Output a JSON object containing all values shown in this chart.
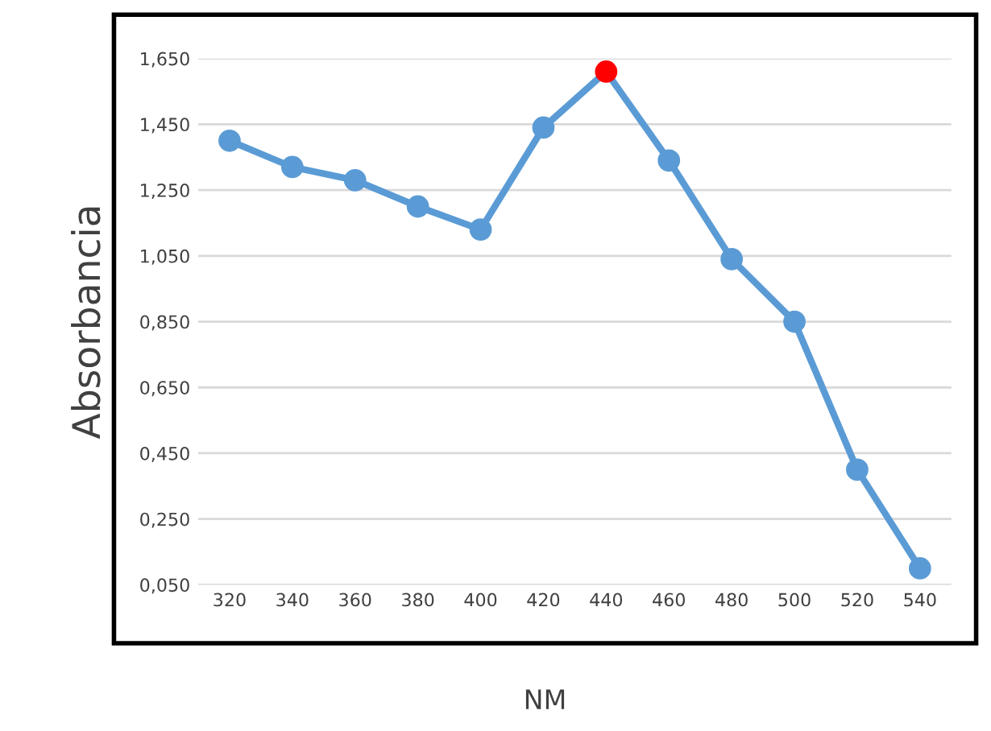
{
  "chart_data": {
    "type": "line",
    "xlabel": "NM",
    "ylabel": "Absorbancia",
    "categories": [
      "320",
      "340",
      "360",
      "380",
      "400",
      "420",
      "440",
      "460",
      "480",
      "500",
      "520",
      "540"
    ],
    "series": [
      {
        "color": "#5b9bd5",
        "colors": [
          "#5b9bd5",
          "#5b9bd5",
          "#5b9bd5",
          "#5b9bd5",
          "#5b9bd5",
          "#5b9bd5",
          "#ff0000",
          "#5b9bd5",
          "#5b9bd5",
          "#5b9bd5",
          "#5b9bd5",
          "#5b9bd5"
        ],
        "values": [
          1.4,
          1.32,
          1.28,
          1.2,
          1.13,
          1.44,
          1.61,
          1.34,
          1.04,
          0.85,
          0.4,
          0.1
        ]
      }
    ],
    "ylim": [
      0.05,
      1.65
    ],
    "yticks": [
      {
        "value": 0.05,
        "label": "0,050"
      },
      {
        "value": 0.25,
        "label": "0,250"
      },
      {
        "value": 0.45,
        "label": "0,450"
      },
      {
        "value": 0.65,
        "label": "0,650"
      },
      {
        "value": 0.85,
        "label": "0,850"
      },
      {
        "value": 1.05,
        "label": "1,050"
      },
      {
        "value": 1.25,
        "label": "1,250"
      },
      {
        "value": 1.45,
        "label": "1,450"
      },
      {
        "value": 1.65,
        "label": "1,650"
      }
    ],
    "grid": "y",
    "marker": "circle",
    "line_style": "solid",
    "legend": false
  }
}
